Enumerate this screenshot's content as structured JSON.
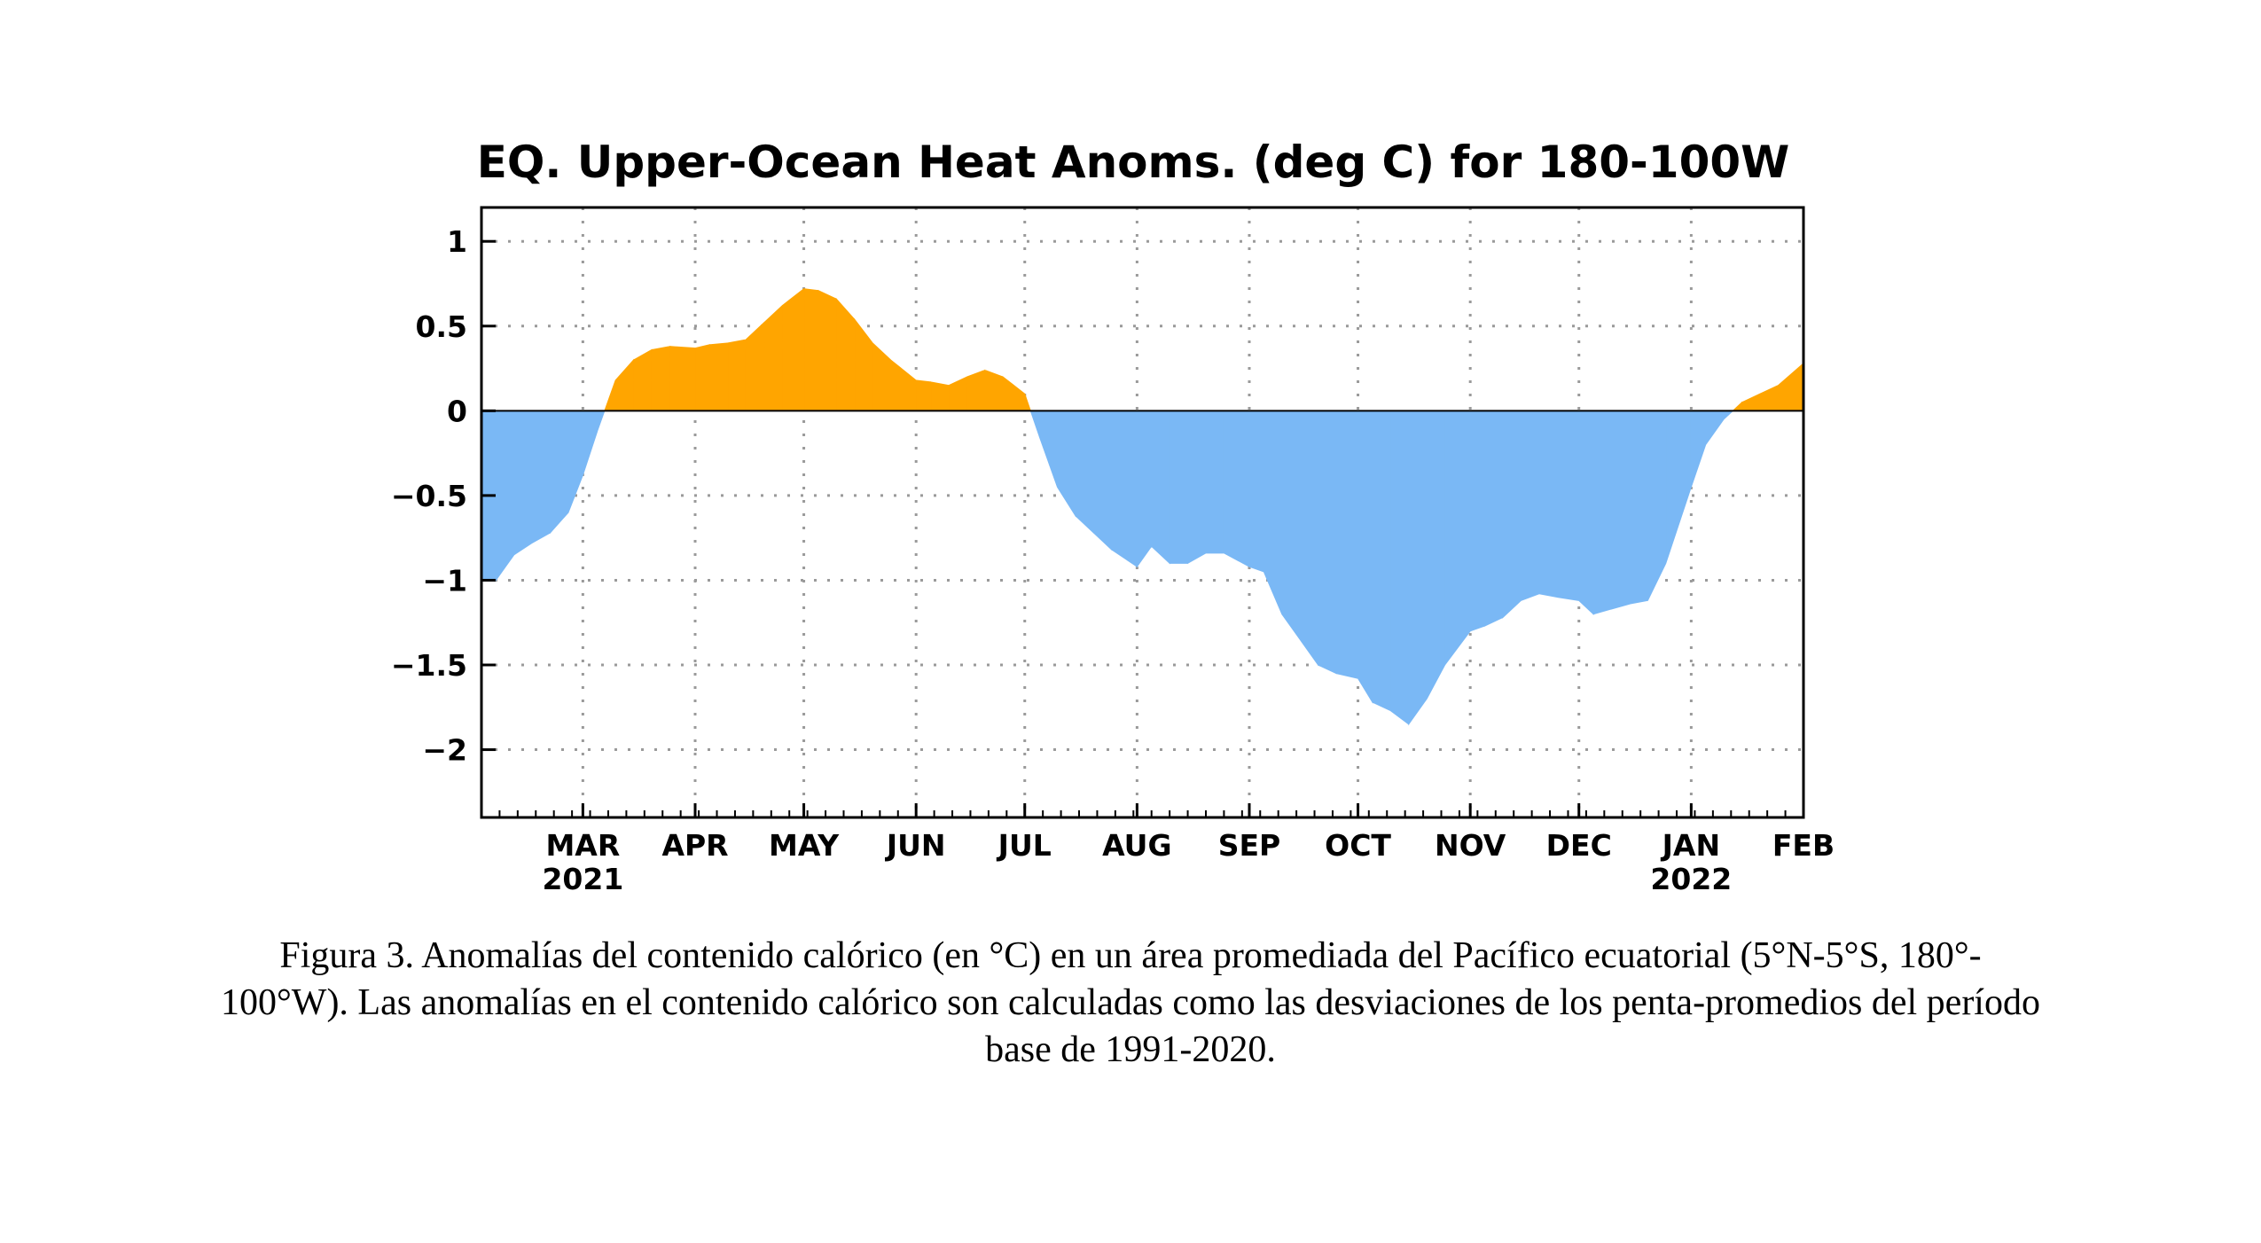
{
  "chart_data": {
    "type": "area",
    "title": "EQ. Upper-Ocean Heat Anoms. (deg C) for 180-100W",
    "xlabel": "",
    "ylabel": "",
    "x_range": [
      "2021-02-01",
      "2022-02-01"
    ],
    "ylim": [
      -2.4,
      1.2
    ],
    "y_ticks": [
      1,
      0.5,
      0,
      -0.5,
      -1,
      -1.5,
      -2
    ],
    "y_tick_labels": [
      "1",
      "0.5",
      "0",
      "−0.5",
      "−1",
      "−1.5",
      "−2"
    ],
    "x_tick_dates": [
      "2021-03-01",
      "2021-04-01",
      "2021-05-01",
      "2021-06-01",
      "2021-07-01",
      "2021-08-01",
      "2021-09-01",
      "2021-10-01",
      "2021-11-01",
      "2021-12-01",
      "2022-01-01",
      "2022-02-01"
    ],
    "x_tick_labels": [
      "MAR",
      "APR",
      "MAY",
      "JUN",
      "JUL",
      "AUG",
      "SEP",
      "OCT",
      "NOV",
      "DEC",
      "JAN",
      "FEB"
    ],
    "x_year_labels": [
      {
        "date": "2021-03-01",
        "label": "2021"
      },
      {
        "date": "2022-01-01",
        "label": "2022"
      }
    ],
    "grid": true,
    "positive_color": "#ffa500",
    "negative_color": "#7ab8f5",
    "series": [
      {
        "x": [
          "2021-02-01",
          "2021-02-05",
          "2021-02-10",
          "2021-02-15",
          "2021-02-20",
          "2021-02-25",
          "2021-03-01",
          "2021-03-05",
          "2021-03-10",
          "2021-03-15",
          "2021-03-20",
          "2021-03-25",
          "2021-04-01",
          "2021-04-05",
          "2021-04-10",
          "2021-04-15",
          "2021-04-20",
          "2021-04-25",
          "2021-05-01",
          "2021-05-05",
          "2021-05-10",
          "2021-05-15",
          "2021-05-20",
          "2021-05-25",
          "2021-06-01",
          "2021-06-05",
          "2021-06-10",
          "2021-06-15",
          "2021-06-20",
          "2021-06-25",
          "2021-07-01",
          "2021-07-05",
          "2021-07-10",
          "2021-07-15",
          "2021-07-20",
          "2021-07-25",
          "2021-08-01",
          "2021-08-05",
          "2021-08-10",
          "2021-08-15",
          "2021-08-20",
          "2021-08-25",
          "2021-09-01",
          "2021-09-05",
          "2021-09-10",
          "2021-09-15",
          "2021-09-20",
          "2021-09-25",
          "2021-10-01",
          "2021-10-05",
          "2021-10-10",
          "2021-10-15",
          "2021-10-20",
          "2021-10-25",
          "2021-11-01",
          "2021-11-05",
          "2021-11-10",
          "2021-11-15",
          "2021-11-20",
          "2021-11-25",
          "2021-12-01",
          "2021-12-05",
          "2021-12-10",
          "2021-12-15",
          "2021-12-20",
          "2021-12-25",
          "2022-01-01",
          "2022-01-05",
          "2022-01-10",
          "2022-01-15",
          "2022-01-20",
          "2022-01-25",
          "2022-02-01"
        ],
        "values": [
          -1.0,
          -1.0,
          -0.85,
          -0.78,
          -0.72,
          -0.6,
          -0.38,
          -0.12,
          0.18,
          0.3,
          0.36,
          0.38,
          0.37,
          0.39,
          0.4,
          0.42,
          0.52,
          0.62,
          0.72,
          0.71,
          0.66,
          0.54,
          0.4,
          0.3,
          0.18,
          0.17,
          0.15,
          0.2,
          0.24,
          0.2,
          0.1,
          -0.15,
          -0.45,
          -0.62,
          -0.72,
          -0.82,
          -0.92,
          -0.8,
          -0.9,
          -0.9,
          -0.84,
          -0.84,
          -0.92,
          -0.95,
          -1.2,
          -1.35,
          -1.5,
          -1.55,
          -1.58,
          -1.72,
          -1.77,
          -1.85,
          -1.7,
          -1.5,
          -1.3,
          -1.27,
          -1.22,
          -1.12,
          -1.08,
          -1.1,
          -1.12,
          -1.2,
          -1.17,
          -1.14,
          -1.12,
          -0.9,
          -0.45,
          -0.2,
          -0.05,
          0.05,
          0.1,
          0.15,
          0.28
        ]
      }
    ]
  },
  "caption": {
    "line1": "Figura 3. Anomalías del contenido calórico (en °C) en un área promediada del Pacífico ecuatorial (5°N-5°S, 180°-",
    "line2": "100°W). Las anomalías en el contenido calórico son calculadas como las desviaciones de los penta-promedios del período",
    "line3": "base de 1991-2020."
  }
}
